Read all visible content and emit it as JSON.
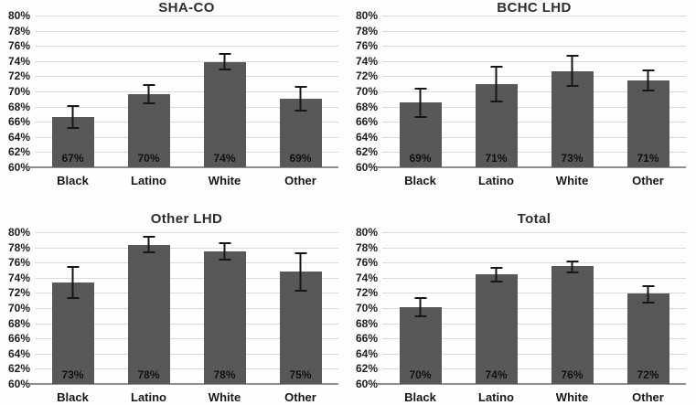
{
  "figure": {
    "background": "#fefefe",
    "bar_color": "#585858",
    "grid_color": "#dadada",
    "axis_color": "#8f8f8f",
    "error_bar_color": "#161616",
    "label_color": "#101010"
  },
  "chart_data": [
    {
      "type": "bar",
      "title": "SHA-CO",
      "categories": [
        "Black",
        "Latino",
        "White",
        "Other"
      ],
      "values": [
        66.6,
        69.6,
        73.9,
        69.0
      ],
      "bar_labels": [
        "67%",
        "70%",
        "74%",
        "69%"
      ],
      "error_low": [
        65.1,
        68.3,
        72.8,
        67.3
      ],
      "error_high": [
        68.2,
        71.0,
        75.1,
        70.7
      ],
      "ylim": [
        60,
        80
      ],
      "ytick_step": 2,
      "ytick_labels": [
        "80%",
        "78%",
        "76%",
        "74%",
        "72%",
        "70%",
        "68%",
        "66%",
        "64%",
        "62%",
        "60%"
      ],
      "grid": true,
      "legend": false
    },
    {
      "type": "bar",
      "title": "BCHC LHD",
      "categories": [
        "Black",
        "Latino",
        "White",
        "Other"
      ],
      "values": [
        68.5,
        71.0,
        72.7,
        71.4
      ],
      "bar_labels": [
        "69%",
        "71%",
        "73%",
        "71%"
      ],
      "error_low": [
        66.5,
        68.5,
        70.6,
        70.0
      ],
      "error_high": [
        70.5,
        73.4,
        74.8,
        72.9
      ],
      "ylim": [
        60,
        80
      ],
      "ytick_step": 2,
      "ytick_labels": [
        "80%",
        "78%",
        "76%",
        "74%",
        "72%",
        "70%",
        "68%",
        "66%",
        "64%",
        "62%",
        "60%"
      ],
      "grid": true,
      "legend": false
    },
    {
      "type": "bar",
      "title": "Other LHD",
      "categories": [
        "Black",
        "Latino",
        "White",
        "Other"
      ],
      "values": [
        73.4,
        78.3,
        77.5,
        74.8
      ],
      "bar_labels": [
        "73%",
        "78%",
        "78%",
        "75%"
      ],
      "error_low": [
        71.2,
        77.2,
        76.3,
        72.2
      ],
      "error_high": [
        75.6,
        79.5,
        78.7,
        77.4
      ],
      "ylim": [
        60,
        80
      ],
      "ytick_step": 2,
      "ytick_labels": [
        "80%",
        "78%",
        "76%",
        "74%",
        "72%",
        "70%",
        "68%",
        "66%",
        "64%",
        "62%",
        "60%"
      ],
      "grid": true,
      "legend": false
    },
    {
      "type": "bar",
      "title": "Total",
      "categories": [
        "Black",
        "Latino",
        "White",
        "Other"
      ],
      "values": [
        70.1,
        74.4,
        75.5,
        71.9
      ],
      "bar_labels": [
        "70%",
        "74%",
        "76%",
        "72%"
      ],
      "error_low": [
        68.8,
        73.4,
        74.6,
        70.6
      ],
      "error_high": [
        71.5,
        75.4,
        76.3,
        73.0
      ],
      "ylim": [
        60,
        80
      ],
      "ytick_step": 2,
      "ytick_labels": [
        "80%",
        "78%",
        "76%",
        "74%",
        "72%",
        "70%",
        "68%",
        "66%",
        "64%",
        "62%",
        "60%"
      ],
      "grid": true,
      "legend": false
    }
  ]
}
